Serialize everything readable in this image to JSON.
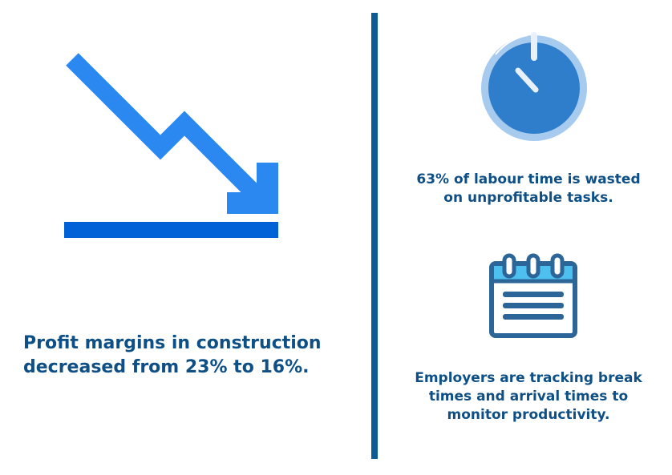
{
  "colors": {
    "text": "#0e4f86",
    "divider": "#0e5a94",
    "arrow": "#2b88f0",
    "baseline": "#0062d6",
    "timer_face": "#2f7ecb",
    "timer_ring": "#a6cbef",
    "timer_hand": "#e8f1fb",
    "calendar_stroke": "#2c6598",
    "calendar_fill": "#ffffff",
    "calendar_header": "#4dc0f0"
  },
  "left": {
    "icon": "trend-down-arrow-icon",
    "caption_line1": "Profit margins in construction",
    "caption_line2": "decreased from 23% to 16%."
  },
  "right": {
    "timer": {
      "icon": "timer-icon",
      "caption_line1": "63% of labour time is wasted",
      "caption_line2": "on unprofitable tasks."
    },
    "calendar": {
      "icon": "calendar-icon",
      "caption_line1": "Employers are tracking break",
      "caption_line2": "times and arrival times to",
      "caption_line3": "monitor productivity."
    }
  }
}
